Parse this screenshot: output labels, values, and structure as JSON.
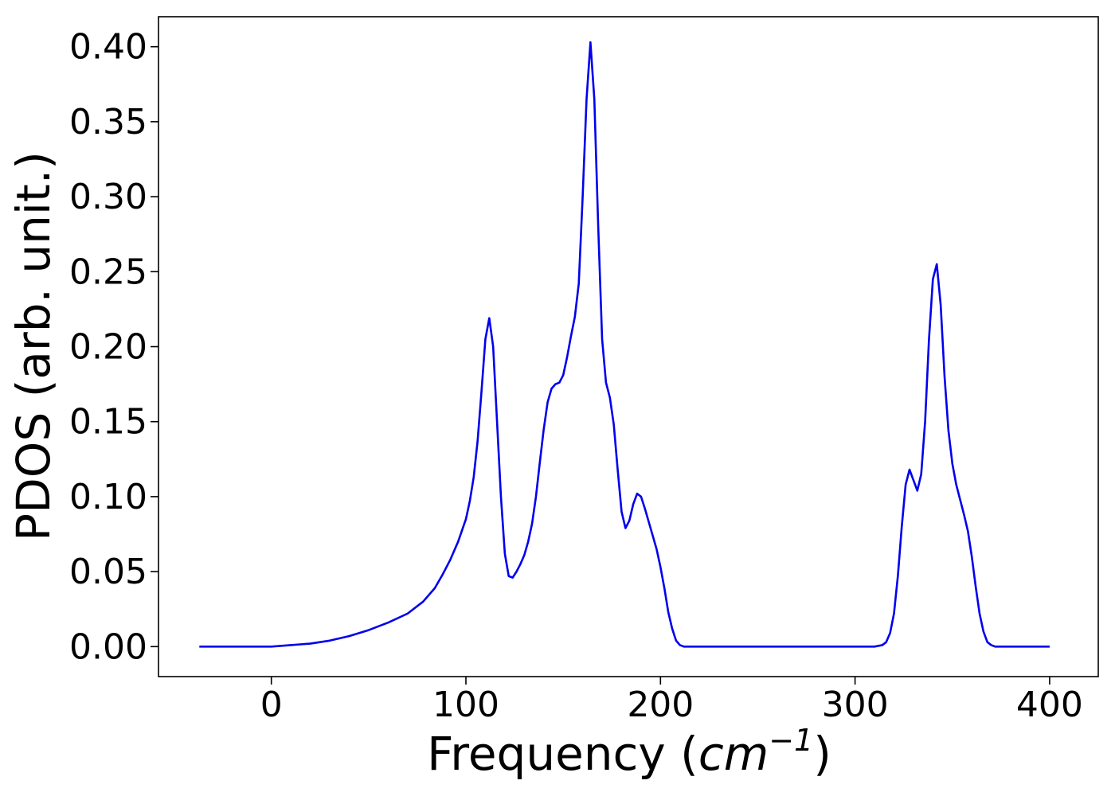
{
  "chart_data": {
    "type": "line",
    "title": "",
    "xlabel": {
      "prefix": "Frequency (",
      "unit_base": "cm",
      "unit_exponent": "−1",
      "suffix": ")"
    },
    "ylabel": "PDOS (arb. unit.)",
    "xlim": [
      -58,
      425
    ],
    "ylim": [
      -0.02,
      0.42
    ],
    "xticks": [
      0,
      100,
      200,
      300,
      400
    ],
    "xtick_labels": [
      "0",
      "100",
      "200",
      "300",
      "400"
    ],
    "yticks": [
      0.0,
      0.05,
      0.1,
      0.15,
      0.2,
      0.25,
      0.3,
      0.35,
      0.4
    ],
    "ytick_labels": [
      "0.00",
      "0.05",
      "0.10",
      "0.15",
      "0.20",
      "0.25",
      "0.30",
      "0.35",
      "0.40"
    ],
    "grid": false,
    "legend": "none",
    "series": [
      {
        "color": "#0000ee",
        "x": [
          -37,
          0,
          10,
          20,
          30,
          40,
          50,
          60,
          70,
          78,
          84,
          88,
          92,
          96,
          100,
          102,
          104,
          106,
          108,
          110,
          112,
          114,
          116,
          118,
          120,
          122,
          124,
          126,
          128,
          130,
          132,
          134,
          136,
          138,
          140,
          142,
          144,
          146,
          148,
          150,
          152,
          154,
          156,
          158,
          160,
          162,
          164,
          166,
          168,
          170,
          172,
          174,
          176,
          178,
          180,
          182,
          184,
          186,
          188,
          190,
          192,
          194,
          196,
          198,
          200,
          202,
          204,
          206,
          208,
          210,
          212,
          214,
          216,
          218,
          220,
          222,
          224,
          230,
          300,
          310,
          314,
          316,
          318,
          320,
          322,
          324,
          326,
          328,
          330,
          332,
          334,
          336,
          338,
          340,
          342,
          344,
          346,
          348,
          350,
          352,
          354,
          356,
          358,
          360,
          362,
          364,
          366,
          368,
          370,
          372,
          374,
          376,
          380,
          400
        ],
        "y": [
          0.0,
          0.0,
          0.001,
          0.002,
          0.004,
          0.007,
          0.011,
          0.016,
          0.022,
          0.03,
          0.039,
          0.048,
          0.058,
          0.07,
          0.085,
          0.097,
          0.113,
          0.137,
          0.17,
          0.205,
          0.219,
          0.2,
          0.15,
          0.1,
          0.062,
          0.047,
          0.046,
          0.05,
          0.055,
          0.061,
          0.07,
          0.082,
          0.1,
          0.123,
          0.145,
          0.163,
          0.172,
          0.175,
          0.176,
          0.181,
          0.193,
          0.207,
          0.22,
          0.242,
          0.3,
          0.365,
          0.403,
          0.365,
          0.28,
          0.205,
          0.176,
          0.166,
          0.148,
          0.118,
          0.09,
          0.079,
          0.084,
          0.095,
          0.102,
          0.1,
          0.092,
          0.083,
          0.074,
          0.065,
          0.053,
          0.039,
          0.023,
          0.012,
          0.004,
          0.001,
          0.0,
          0.0,
          0.0,
          0.0,
          0.0,
          0.0,
          0.0,
          0.0,
          0.0,
          0.0,
          0.001,
          0.003,
          0.009,
          0.022,
          0.047,
          0.08,
          0.108,
          0.118,
          0.111,
          0.104,
          0.115,
          0.15,
          0.205,
          0.245,
          0.255,
          0.228,
          0.18,
          0.144,
          0.122,
          0.108,
          0.098,
          0.088,
          0.077,
          0.06,
          0.04,
          0.022,
          0.01,
          0.003,
          0.001,
          0.0,
          0.0,
          0.0,
          0.0,
          0.0
        ]
      }
    ]
  }
}
